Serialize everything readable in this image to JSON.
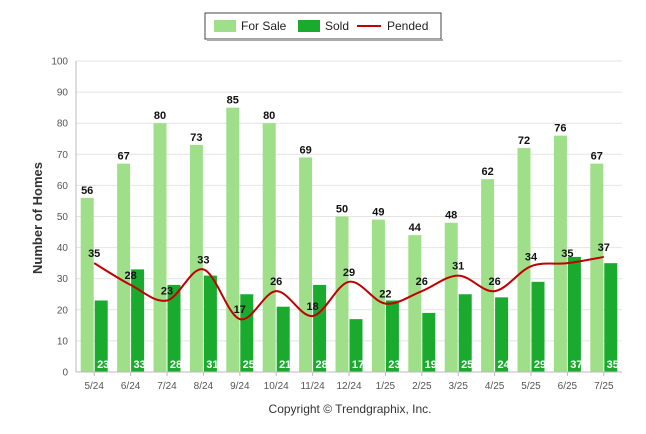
{
  "chart_data": {
    "type": "bar",
    "ylabel": "Number of Homes",
    "ylim": [
      0,
      100
    ],
    "yticks": [
      0,
      10,
      20,
      30,
      40,
      50,
      60,
      70,
      80,
      90,
      100
    ],
    "grid": true,
    "legend_placement": "top-center",
    "categories": [
      "5/24",
      "6/24",
      "7/24",
      "8/24",
      "9/24",
      "10/24",
      "11/24",
      "12/24",
      "1/25",
      "2/25",
      "3/25",
      "4/25",
      "5/25",
      "6/25",
      "7/25"
    ],
    "series": [
      {
        "name": "For Sale",
        "kind": "bar",
        "color": "#9fdf8a",
        "values": [
          56,
          67,
          80,
          73,
          85,
          80,
          69,
          50,
          49,
          44,
          48,
          62,
          72,
          76,
          67
        ]
      },
      {
        "name": "Sold",
        "kind": "bar",
        "color": "#1aab2e",
        "values": [
          23,
          33,
          28,
          31,
          25,
          21,
          28,
          17,
          23,
          19,
          25,
          24,
          29,
          37,
          35
        ]
      },
      {
        "name": "Pended",
        "kind": "line",
        "color": "#c00000",
        "values": [
          35,
          28,
          23,
          33,
          17,
          26,
          18,
          29,
          22,
          26,
          31,
          26,
          34,
          35,
          37
        ]
      }
    ]
  },
  "footer": {
    "copyright": "Copyright © Trendgraphix, Inc."
  }
}
